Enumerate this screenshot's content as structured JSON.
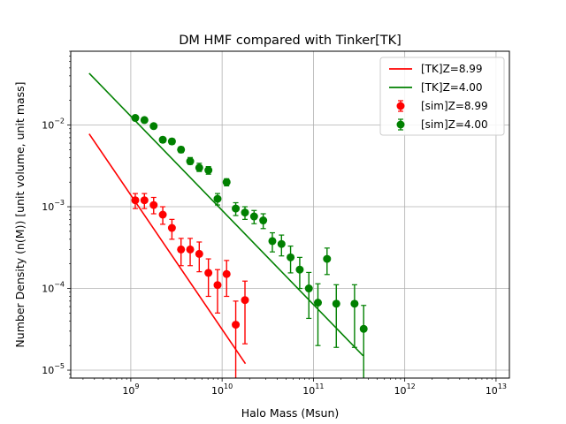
{
  "chart_data": {
    "type": "scatter",
    "title": "DM HMF compared with Tinker[TK]",
    "xlabel": "Halo Mass (Msun)",
    "ylabel": "Number Density (n(M)) [unit volume, unit mass]",
    "x_scale": "log",
    "y_scale": "log",
    "xlim": [
      220000000.0,
      14000000000000.0
    ],
    "ylim": [
      8e-06,
      0.08
    ],
    "x_ticks": [
      {
        "value": 1000000000.0,
        "base": "10",
        "exp": "9"
      },
      {
        "value": 10000000000.0,
        "base": "10",
        "exp": "10"
      },
      {
        "value": 100000000000.0,
        "base": "10",
        "exp": "11"
      },
      {
        "value": 1000000000000.0,
        "base": "10",
        "exp": "12"
      },
      {
        "value": 10000000000000.0,
        "base": "10",
        "exp": "13"
      }
    ],
    "y_ticks": [
      {
        "value": 1e-05,
        "base": "10",
        "exp": "−5"
      },
      {
        "value": 0.0001,
        "base": "10",
        "exp": "−4"
      },
      {
        "value": 0.001,
        "base": "10",
        "exp": "−3"
      },
      {
        "value": 0.01,
        "base": "10",
        "exp": "−2"
      }
    ],
    "grid": true,
    "legend_position": "top-right",
    "lines": [
      {
        "name": "[TK]Z=8.99",
        "color": "#ff0000",
        "x": [
          350000000.0,
          18000000000.0
        ],
        "y": [
          0.0078,
          1.2e-05
        ]
      },
      {
        "name": "[TK]Z=4.00",
        "color": "#008000",
        "x": [
          350000000.0,
          350000000000.0
        ],
        "y": [
          0.043,
          1.5e-05
        ]
      }
    ],
    "series": [
      {
        "name": "[sim]Z=8.99",
        "color": "#ff0000",
        "points": [
          {
            "x": 1120000000.0,
            "y": 0.0012,
            "lo": 0.00095,
            "hi": 0.00145
          },
          {
            "x": 1410000000.0,
            "y": 0.0012,
            "lo": 0.00095,
            "hi": 0.00145
          },
          {
            "x": 1780000000.0,
            "y": 0.00105,
            "lo": 0.00082,
            "hi": 0.0013
          },
          {
            "x": 2240000000.0,
            "y": 0.0008,
            "lo": 0.00061,
            "hi": 0.001
          },
          {
            "x": 2820000000.0,
            "y": 0.00055,
            "lo": 0.0004,
            "hi": 0.0007
          },
          {
            "x": 3550000000.0,
            "y": 0.0003,
            "lo": 0.00019,
            "hi": 0.00041
          },
          {
            "x": 4470000000.0,
            "y": 0.0003,
            "lo": 0.00019,
            "hi": 0.00041
          },
          {
            "x": 5620000000.0,
            "y": 0.000265,
            "lo": 0.00016,
            "hi": 0.00037
          },
          {
            "x": 7080000000.0,
            "y": 0.000155,
            "lo": 8e-05,
            "hi": 0.00023
          },
          {
            "x": 8910000000.0,
            "y": 0.00011,
            "lo": 5e-05,
            "hi": 0.00017
          },
          {
            "x": 11200000000.0,
            "y": 0.00015,
            "lo": 8e-05,
            "hi": 0.00022
          },
          {
            "x": 14100000000.0,
            "y": 3.6e-05,
            "lo": 6e-06,
            "hi": 7e-05
          },
          {
            "x": 17800000000.0,
            "y": 7.2e-05,
            "lo": 2.1e-05,
            "hi": 0.000123
          }
        ]
      },
      {
        "name": "[sim]Z=4.00",
        "color": "#008000",
        "points": [
          {
            "x": 1120000000.0,
            "y": 0.0122,
            "lo": 0.0115,
            "hi": 0.0129
          },
          {
            "x": 1410000000.0,
            "y": 0.0115,
            "lo": 0.0108,
            "hi": 0.0122
          },
          {
            "x": 1780000000.0,
            "y": 0.0097,
            "lo": 0.0091,
            "hi": 0.0103
          },
          {
            "x": 2240000000.0,
            "y": 0.0066,
            "lo": 0.0061,
            "hi": 0.0071
          },
          {
            "x": 2820000000.0,
            "y": 0.0063,
            "lo": 0.0058,
            "hi": 0.0068
          },
          {
            "x": 3550000000.0,
            "y": 0.005,
            "lo": 0.0046,
            "hi": 0.0054
          },
          {
            "x": 4470000000.0,
            "y": 0.0036,
            "lo": 0.0033,
            "hi": 0.004
          },
          {
            "x": 5620000000.0,
            "y": 0.003,
            "lo": 0.0027,
            "hi": 0.0034
          },
          {
            "x": 7080000000.0,
            "y": 0.0028,
            "lo": 0.0025,
            "hi": 0.0031
          },
          {
            "x": 8910000000.0,
            "y": 0.00125,
            "lo": 0.00105,
            "hi": 0.00145
          },
          {
            "x": 11200000000.0,
            "y": 0.002,
            "lo": 0.0018,
            "hi": 0.0022
          },
          {
            "x": 14100000000.0,
            "y": 0.00095,
            "lo": 0.00078,
            "hi": 0.00112
          },
          {
            "x": 17800000000.0,
            "y": 0.00085,
            "lo": 0.0007,
            "hi": 0.001
          },
          {
            "x": 22400000000.0,
            "y": 0.00076,
            "lo": 0.00062,
            "hi": 0.0009
          },
          {
            "x": 28200000000.0,
            "y": 0.00068,
            "lo": 0.00054,
            "hi": 0.00082
          },
          {
            "x": 35500000000.0,
            "y": 0.00038,
            "lo": 0.00028,
            "hi": 0.00048
          },
          {
            "x": 44700000000.0,
            "y": 0.00035,
            "lo": 0.00025,
            "hi": 0.00045
          },
          {
            "x": 56200000000.0,
            "y": 0.00024,
            "lo": 0.000155,
            "hi": 0.00033
          },
          {
            "x": 70800000000.0,
            "y": 0.00017,
            "lo": 0.0001,
            "hi": 0.00024
          },
          {
            "x": 89100000000.0,
            "y": 0.0001,
            "lo": 4.3e-05,
            "hi": 0.000157
          },
          {
            "x": 112000000000.0,
            "y": 6.7e-05,
            "lo": 2e-05,
            "hi": 0.000114
          },
          {
            "x": 141000000000.0,
            "y": 0.00023,
            "lo": 0.000148,
            "hi": 0.000312
          },
          {
            "x": 178000000000.0,
            "y": 6.5e-05,
            "lo": 1.9e-05,
            "hi": 0.000111
          },
          {
            "x": 282000000000.0,
            "y": 6.5e-05,
            "lo": 1.9e-05,
            "hi": 0.000111
          },
          {
            "x": 355000000000.0,
            "y": 3.2e-05,
            "lo": 5e-06,
            "hi": 6.2e-05
          }
        ]
      }
    ]
  }
}
